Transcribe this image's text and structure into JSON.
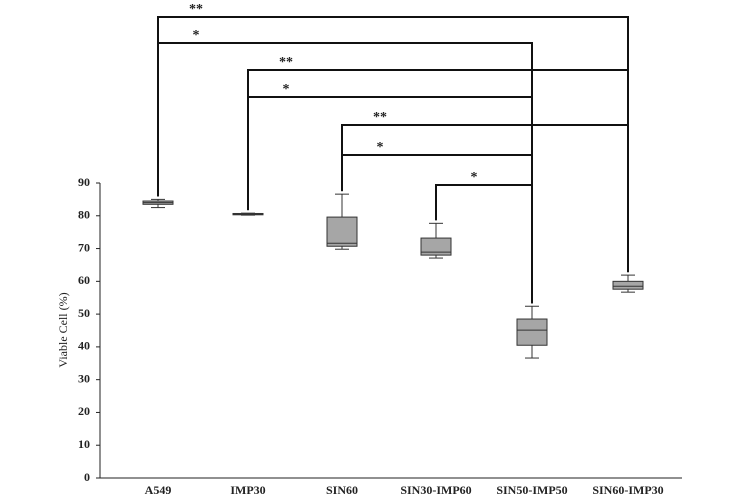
{
  "chart_data": {
    "type": "box",
    "y_label": "Viable Cell (%)",
    "categories": [
      "A549",
      "IMP30",
      "SIN60",
      "SIN30-IMP60",
      "SIN50-IMP50",
      "SIN60-IMP30"
    ],
    "boxes": [
      {
        "min": 82.5,
        "q1": 83.5,
        "median": 84,
        "q3": 84.5,
        "max": 85
      },
      {
        "min": 80.2,
        "q1": 80.3,
        "median": 80.5,
        "q3": 80.7,
        "max": 80.8
      },
      {
        "min": 69.8,
        "q1": 70.7,
        "median": 71.6,
        "q3": 79.6,
        "max": 86.6
      },
      {
        "min": 67.1,
        "q1": 68,
        "median": 68.9,
        "q3": 73.2,
        "max": 77.7
      },
      {
        "min": 36.6,
        "q1": 40.5,
        "median": 45.1,
        "q3": 48.5,
        "max": 52.4
      },
      {
        "min": 56.7,
        "q1": 57.6,
        "median": 58.5,
        "q3": 60,
        "max": 61.9
      }
    ],
    "color": "#a6a6a6",
    "ylim": [
      0,
      90
    ],
    "yticks": [
      0,
      10,
      20,
      30,
      40,
      50,
      60,
      70,
      80,
      90
    ],
    "comparisons": [
      {
        "from": "A549",
        "to": "SIN60-IMP30",
        "label": "**"
      },
      {
        "from": "A549",
        "to": "SIN50-IMP50",
        "label": "*"
      },
      {
        "from": "IMP30",
        "to": "SIN60-IMP30",
        "label": "**"
      },
      {
        "from": "IMP30",
        "to": "SIN50-IMP50",
        "label": "*"
      },
      {
        "from": "SIN60",
        "to": "SIN60-IMP30",
        "label": "**"
      },
      {
        "from": "SIN60",
        "to": "SIN50-IMP50",
        "label": "*"
      },
      {
        "from": "SIN30-IMP60",
        "to": "SIN50-IMP50",
        "label": "*"
      }
    ]
  }
}
